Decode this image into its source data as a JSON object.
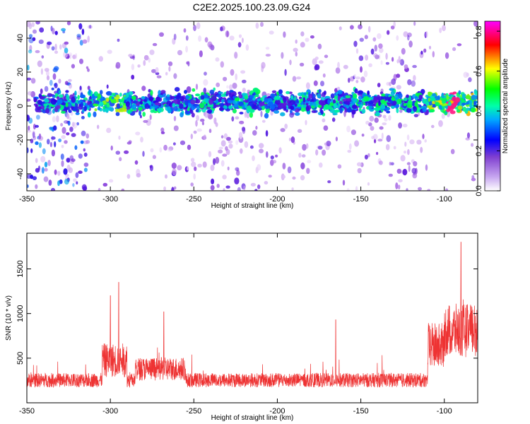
{
  "title": "C2E2.2025.100.23.09.G24",
  "chart_data": [
    {
      "type": "heatmap",
      "xlabel": "Height of straight line (km)",
      "ylabel": "Frequency (Hz)",
      "xlim": [
        -350,
        -80
      ],
      "ylim": [
        -50,
        50
      ],
      "xticks": [
        -350,
        -300,
        -250,
        -200,
        -150,
        -100
      ],
      "yticks": [
        -40,
        -20,
        0,
        20,
        40
      ],
      "colorbar": {
        "label": "Normalized spectral amplitude",
        "range": [
          0.0,
          0.85
        ],
        "ticks": [
          0.0,
          0.2,
          0.4,
          0.6,
          0.8
        ],
        "colors": [
          "#ffffff",
          "#7f3fd0",
          "#0000ff",
          "#00ffff",
          "#00ff00",
          "#ffff00",
          "#ff0000",
          "#ff00ff"
        ]
      },
      "band_center_hz": 2,
      "max_amplitude_at_km": -95
    },
    {
      "type": "line",
      "xlabel": "Height of straight line (km)",
      "ylabel": "SNR (10 * v/v)",
      "xlim": [
        -350,
        -80
      ],
      "ylim": [
        0,
        1900
      ],
      "xticks": [
        -350,
        -300,
        -250,
        -200,
        -150,
        -100
      ],
      "yticks": [
        500,
        1000,
        1500
      ],
      "color": "#ee3333",
      "baseline_snr": 230,
      "peaks": [
        {
          "x": -300,
          "y": 1200
        },
        {
          "x": -295,
          "y": 1350
        },
        {
          "x": -268,
          "y": 1020
        },
        {
          "x": -165,
          "y": 930
        },
        {
          "x": -90,
          "y": 1800
        }
      ]
    }
  ]
}
